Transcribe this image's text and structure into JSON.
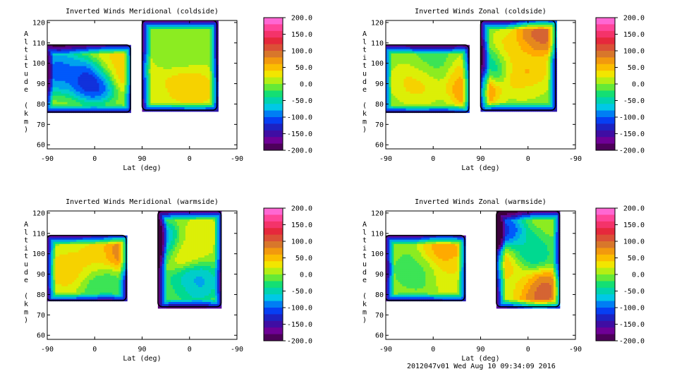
{
  "footer": "2012047v01 Wed Aug 10 09:34:09 2016",
  "chart_data": [
    {
      "type": "heatmap",
      "title": "Inverted Winds Meridional (coldside)",
      "xlabel": "Lat (deg)",
      "ylabel": "Altitude (km)",
      "x_tick_labels": [
        "-90",
        "0",
        "90",
        "0",
        "-90"
      ],
      "y_ticks": [
        60,
        70,
        80,
        90,
        100,
        110,
        120
      ],
      "ylim": [
        58,
        121
      ],
      "colorbar_ticks": [
        "200.0",
        "150.0",
        "100.0",
        "50.0",
        "0.0",
        "-50.0",
        "-100.0",
        "-150.0",
        "-200.0"
      ],
      "colorbar_range": [
        -200,
        200
      ],
      "blobs": [
        {
          "x": -68,
          "y": 96,
          "v": -110
        },
        {
          "x": -2,
          "y": 92,
          "v": -150
        },
        {
          "x": 35,
          "y": 99,
          "v": 40
        },
        {
          "x": 66,
          "y": 96,
          "v": 65
        },
        {
          "x": 116,
          "y": 88,
          "v": 25
        },
        {
          "x": 160,
          "y": 90,
          "v": 45
        },
        {
          "x": 195,
          "y": 87,
          "v": 40
        },
        {
          "x": 140,
          "y": 112,
          "v": 5
        },
        {
          "x": 150,
          "y": 104,
          "v": -10
        }
      ],
      "bands": [
        {
          "x0": -96,
          "x1": 68,
          "y0": 76,
          "y1": 109
        },
        {
          "x0": 90,
          "x1": 232,
          "y0": 77,
          "y1": 121
        }
      ]
    },
    {
      "type": "heatmap",
      "title": "Inverted Winds Zonal (coldside)",
      "xlabel": "Lat (deg)",
      "ylabel": "Altitude (km)",
      "x_tick_labels": [
        "-90",
        "0",
        "90",
        "0",
        "-90"
      ],
      "y_ticks": [
        60,
        70,
        80,
        90,
        100,
        110,
        120
      ],
      "ylim": [
        58,
        121
      ],
      "colorbar_ticks": [
        "200.0",
        "150.0",
        "100.0",
        "50.0",
        "0.0",
        "-50.0",
        "-100.0",
        "-150.0",
        "-200.0"
      ],
      "colorbar_range": [
        -200,
        200
      ],
      "blobs": [
        {
          "x": -30,
          "y": 91,
          "v": 40
        },
        {
          "x": 0,
          "y": 100,
          "v": -20
        },
        {
          "x": 65,
          "y": 94,
          "v": 45
        },
        {
          "x": 80,
          "y": 89,
          "v": 110
        },
        {
          "x": 110,
          "y": 99,
          "v": -80
        },
        {
          "x": 145,
          "y": 104,
          "v": 55
        },
        {
          "x": 170,
          "y": 95,
          "v": 60
        },
        {
          "x": 205,
          "y": 114,
          "v": 110
        },
        {
          "x": 190,
          "y": 82,
          "v": 10
        }
      ],
      "bands": [
        {
          "x0": -96,
          "x1": 68,
          "y0": 76,
          "y1": 109
        },
        {
          "x0": 90,
          "x1": 232,
          "y0": 77,
          "y1": 121
        }
      ]
    },
    {
      "type": "heatmap",
      "title": "Inverted Winds Meridional (warmside)",
      "xlabel": "Lat (deg)",
      "ylabel": "Altitude (km)",
      "x_tick_labels": [
        "-90",
        "0",
        "90",
        "0",
        "-90"
      ],
      "y_ticks": [
        60,
        70,
        80,
        90,
        100,
        110,
        120
      ],
      "ylim": [
        58,
        121
      ],
      "colorbar_ticks": [
        "200.0",
        "150.0",
        "100.0",
        "50.0",
        "0.0",
        "-50.0",
        "-100.0",
        "-150.0",
        "-200.0"
      ],
      "colorbar_range": [
        -200,
        200
      ],
      "blobs": [
        {
          "x": -55,
          "y": 92,
          "v": 45
        },
        {
          "x": 0,
          "y": 98,
          "v": 40
        },
        {
          "x": 20,
          "y": 86,
          "v": -30
        },
        {
          "x": 55,
          "y": 100,
          "v": 100
        },
        {
          "x": 120,
          "y": 104,
          "v": -140
        },
        {
          "x": 160,
          "y": 100,
          "v": 40
        },
        {
          "x": 185,
          "y": 86,
          "v": -90
        },
        {
          "x": 210,
          "y": 110,
          "v": 20
        },
        {
          "x": 150,
          "y": 82,
          "v": -20
        }
      ],
      "bands": [
        {
          "x0": -91,
          "x1": 60,
          "y0": 77,
          "y1": 109
        },
        {
          "x0": 120,
          "x1": 240,
          "y0": 74,
          "y1": 121
        }
      ]
    },
    {
      "type": "heatmap",
      "title": "Inverted Winds Zonal (warmside)",
      "xlabel": "Lat (deg)",
      "ylabel": "Altitude (km)",
      "x_tick_labels": [
        "-90",
        "0",
        "90",
        "0",
        "-90"
      ],
      "y_ticks": [
        60,
        70,
        80,
        90,
        100,
        110,
        120
      ],
      "ylim": [
        58,
        121
      ],
      "colorbar_ticks": [
        "200.0",
        "150.0",
        "100.0",
        "50.0",
        "0.0",
        "-50.0",
        "-100.0",
        "-150.0",
        "-200.0"
      ],
      "colorbar_range": [
        -200,
        200
      ],
      "blobs": [
        {
          "x": -30,
          "y": 92,
          "v": -20
        },
        {
          "x": 20,
          "y": 100,
          "v": 70
        },
        {
          "x": 40,
          "y": 90,
          "v": 30
        },
        {
          "x": 125,
          "y": 110,
          "v": -140
        },
        {
          "x": 130,
          "y": 96,
          "v": 80
        },
        {
          "x": 175,
          "y": 100,
          "v": -60
        },
        {
          "x": 200,
          "y": 82,
          "v": 120
        },
        {
          "x": 160,
          "y": 86,
          "v": 20
        }
      ],
      "bands": [
        {
          "x0": -91,
          "x1": 60,
          "y0": 77,
          "y1": 109
        },
        {
          "x0": 120,
          "x1": 240,
          "y0": 74,
          "y1": 121
        }
      ]
    }
  ]
}
